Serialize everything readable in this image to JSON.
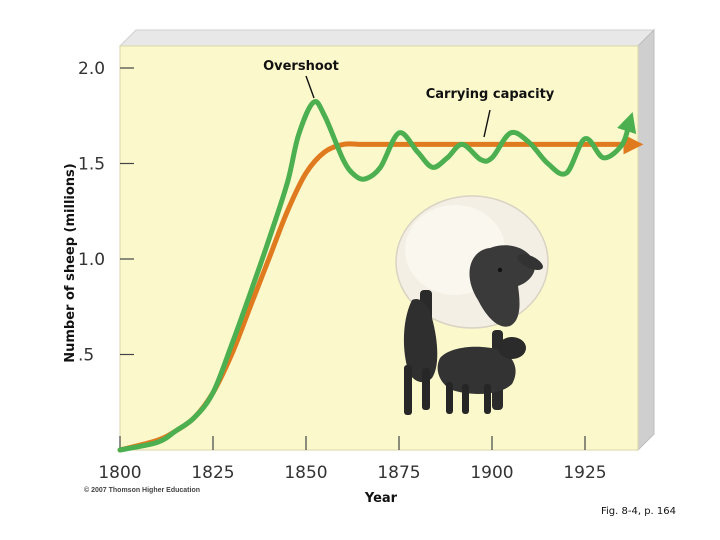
{
  "chart_data": {
    "type": "line",
    "title": "",
    "xlabel": "Year",
    "ylabel": "Number of sheep (millions)",
    "xlim": [
      1800,
      1940
    ],
    "ylim": [
      0,
      2.1
    ],
    "x_ticks": [
      1800,
      1825,
      1850,
      1875,
      1900,
      1925
    ],
    "x_tick_labels": [
      "1800",
      "1825",
      "1850",
      "1875",
      "1900",
      "1925"
    ],
    "y_ticks": [
      0.5,
      1.0,
      1.5,
      2.0
    ],
    "y_tick_labels": [
      ".5",
      "1.0",
      "1.5",
      "2.0"
    ],
    "grid": false,
    "series": [
      {
        "color": "#e07a1f",
        "x": [
          1800,
          1810,
          1815,
          1820,
          1825,
          1830,
          1835,
          1840,
          1845,
          1850,
          1855,
          1860,
          1865,
          1870,
          1880,
          1890,
          1900,
          1910,
          1920,
          1930,
          1938
        ],
        "y": [
          0.0,
          0.05,
          0.1,
          0.17,
          0.3,
          0.5,
          0.75,
          1.0,
          1.25,
          1.45,
          1.56,
          1.6,
          1.6,
          1.6,
          1.6,
          1.6,
          1.6,
          1.6,
          1.6,
          1.6,
          1.6
        ]
      },
      {
        "color": "#4caf50",
        "x": [
          1800,
          1810,
          1815,
          1820,
          1825,
          1830,
          1835,
          1840,
          1845,
          1848,
          1852,
          1855,
          1860,
          1863,
          1866,
          1870,
          1875,
          1880,
          1884,
          1888,
          1892,
          1897,
          1900,
          1905,
          1910,
          1915,
          1920,
          1925,
          1930,
          1935,
          1937
        ],
        "y": [
          0.0,
          0.04,
          0.1,
          0.17,
          0.3,
          0.55,
          0.82,
          1.1,
          1.4,
          1.65,
          1.82,
          1.75,
          1.52,
          1.44,
          1.42,
          1.48,
          1.66,
          1.56,
          1.48,
          1.53,
          1.6,
          1.52,
          1.53,
          1.66,
          1.61,
          1.5,
          1.45,
          1.63,
          1.53,
          1.6,
          1.72
        ]
      }
    ],
    "annotations": [
      {
        "text": "Overshoot",
        "x": 1852,
        "y": 1.82
      },
      {
        "text": "Carrying capacity",
        "x": 1885,
        "y": 1.6
      }
    ],
    "credit": "© 2007 Thomson Higher Education",
    "caption": "Fig. 8-4, p. 164"
  }
}
